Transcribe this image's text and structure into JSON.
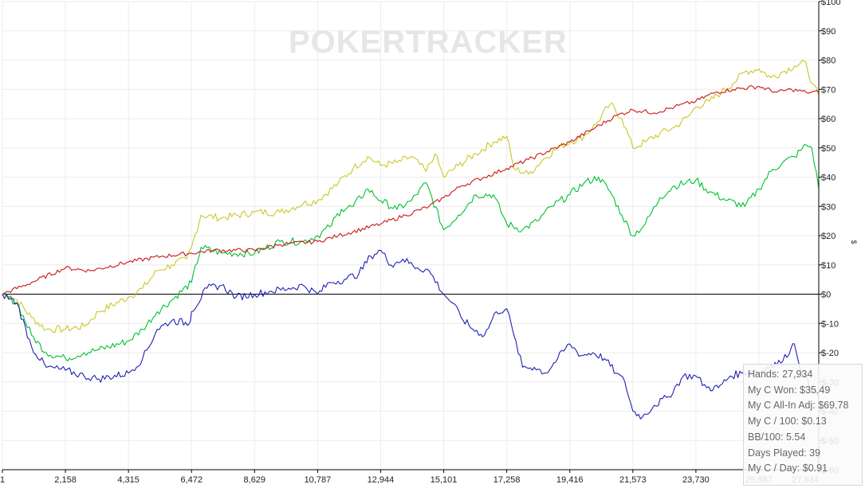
{
  "watermark": "POKERTRACKER",
  "stats": [
    "Hands: 27,934",
    "My C Won: $35.49",
    "My C All-In Adj: $69.78",
    "My C / 100: $0.13",
    "BB/100: 5.54",
    "Days Played: 39",
    "My C / Day: $0.91"
  ],
  "chart_data": {
    "type": "line",
    "title": "",
    "xlabel": "",
    "ylabel": "$",
    "xlim": [
      1,
      27934
    ],
    "ylim": [
      -60,
      100
    ],
    "grid": true,
    "x_ticks": [
      "1",
      "2,158",
      "4,315",
      "6,472",
      "8,629",
      "10,787",
      "12,944",
      "15,101",
      "17,258",
      "19,416",
      "21,573",
      "23,730",
      "25,887",
      "27,934"
    ],
    "x_tick_values": [
      1,
      2158,
      4315,
      6472,
      8629,
      10787,
      12944,
      15101,
      17258,
      19416,
      21573,
      23730,
      25887,
      27934
    ],
    "y_ticks": [
      "$-60",
      "$-50",
      "$-40",
      "$-30",
      "$-20",
      "$-10",
      "$0",
      "$10",
      "$20",
      "$30",
      "$40",
      "$50",
      "$60",
      "$70",
      "$80",
      "$90",
      "$100"
    ],
    "y_tick_values": [
      -60,
      -50,
      -40,
      -30,
      -20,
      -10,
      0,
      10,
      20,
      30,
      40,
      50,
      60,
      70,
      80,
      90,
      100
    ],
    "series": [
      {
        "color": "#c8c828",
        "x": [
          1,
          500,
          1000,
          1500,
          2158,
          2800,
          3300,
          4315,
          4800,
          5300,
          5800,
          6300,
          6472,
          6800,
          7500,
          8629,
          9500,
          10300,
          10787,
          11500,
          12000,
          12500,
          12944,
          13500,
          14000,
          14500,
          14800,
          15101,
          15600,
          16200,
          16800,
          17258,
          17500,
          18000,
          18500,
          19000,
          19416,
          19900,
          20300,
          20800,
          21200,
          21573,
          22000,
          22500,
          23000,
          23500,
          23730,
          24200,
          24600,
          25000,
          25400,
          25887,
          26300,
          26700,
          27100,
          27500,
          27700,
          27934
        ],
        "values": [
          0,
          -2,
          -8,
          -12,
          -12,
          -11,
          -6,
          -1,
          2,
          8,
          10,
          12,
          16,
          27,
          26,
          28,
          28,
          31,
          32,
          38,
          43,
          47,
          44,
          45,
          47,
          42,
          48,
          40,
          44,
          48,
          52,
          54,
          43,
          41,
          46,
          50,
          52,
          54,
          58,
          65,
          60,
          50,
          52,
          55,
          57,
          61,
          64,
          66,
          69,
          72,
          76,
          77,
          74,
          76,
          78,
          79,
          72,
          68
        ]
      },
      {
        "color": "#00c032",
        "x": [
          1,
          500,
          1000,
          1500,
          2158,
          2800,
          3300,
          4315,
          4800,
          5300,
          5800,
          6472,
          6800,
          7500,
          8629,
          9500,
          10300,
          10787,
          11200,
          11600,
          12000,
          12500,
          12944,
          13500,
          14000,
          14500,
          15101,
          15600,
          16200,
          16800,
          17258,
          17800,
          18300,
          18800,
          19416,
          19900,
          20400,
          20800,
          21200,
          21573,
          22000,
          22500,
          23000,
          23730,
          24200,
          24800,
          25400,
          25887,
          26300,
          26700,
          27100,
          27300,
          27500,
          27700,
          27934
        ],
        "values": [
          0,
          -3,
          -14,
          -20,
          -22,
          -20,
          -19,
          -16,
          -12,
          -6,
          -2,
          4,
          16,
          14,
          14,
          18,
          18,
          20,
          23,
          29,
          30,
          36,
          32,
          29,
          32,
          38,
          22,
          27,
          34,
          34,
          24,
          22,
          25,
          30,
          34,
          38,
          40,
          35,
          27,
          20,
          24,
          33,
          37,
          39,
          35,
          32,
          30,
          36,
          42,
          45,
          47,
          49,
          51,
          50,
          36
        ]
      },
      {
        "color": "#cc1616",
        "x": [
          1,
          1000,
          2158,
          3000,
          4315,
          5500,
          6472,
          7200,
          8629,
          9500,
          10787,
          11500,
          12944,
          13800,
          14600,
          15101,
          15700,
          16500,
          17258,
          18000,
          19416,
          20300,
          21000,
          21573,
          22300,
          23000,
          23730,
          24400,
          25000,
          25887,
          26500,
          27000,
          27500,
          27934
        ],
        "values": [
          0,
          4,
          9,
          8,
          11,
          13,
          14,
          15,
          15,
          17,
          18,
          20,
          24,
          27,
          30,
          33,
          37,
          40,
          43,
          46,
          52,
          57,
          61,
          63,
          62,
          64,
          66,
          69,
          70,
          71,
          69,
          70,
          69,
          69
        ]
      },
      {
        "color": "#2020b4",
        "x": [
          1,
          500,
          1000,
          1500,
          2158,
          2800,
          3300,
          4315,
          4800,
          5300,
          5800,
          6400,
          6472,
          7000,
          7500,
          8000,
          8629,
          9200,
          9800,
          10300,
          10787,
          11200,
          11700,
          12200,
          12600,
          12944,
          13300,
          13700,
          14200,
          14600,
          15101,
          15400,
          15700,
          16100,
          16500,
          16900,
          17258,
          17500,
          17800,
          18200,
          18600,
          19000,
          19416,
          19800,
          20200,
          20600,
          21000,
          21300,
          21573,
          21900,
          22300,
          22800,
          23300,
          23730,
          24100,
          24500,
          24900,
          25300,
          25700,
          25887,
          26300,
          26700,
          27000,
          27100,
          27400,
          27934
        ],
        "values": [
          0,
          -3,
          -18,
          -25,
          -26,
          -28,
          -29,
          -27,
          -22,
          -12,
          -9,
          -10,
          -6,
          2,
          3,
          -1,
          0,
          1,
          2,
          3,
          0,
          4,
          5,
          7,
          13,
          15,
          10,
          12,
          9,
          8,
          0,
          -3,
          -8,
          -12,
          -14,
          -6,
          -5,
          -14,
          -25,
          -25,
          -27,
          -22,
          -17,
          -21,
          -20,
          -22,
          -27,
          -30,
          -40,
          -42,
          -38,
          -35,
          -28,
          -28,
          -32,
          -32,
          -28,
          -27,
          -26,
          -27,
          -24,
          -23,
          -18,
          -17,
          -28,
          -35
        ]
      }
    ]
  }
}
